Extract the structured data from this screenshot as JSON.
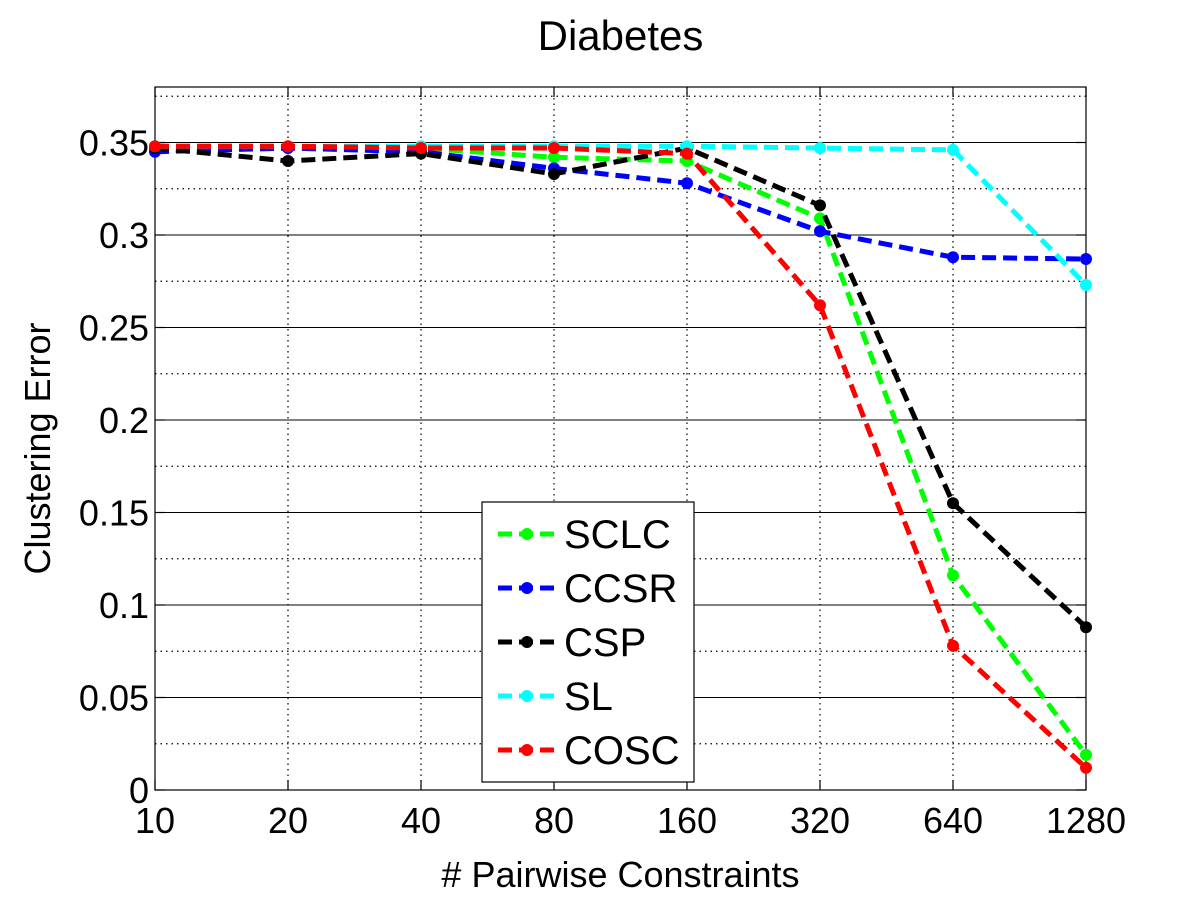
{
  "chart_data": {
    "type": "line",
    "title": "Diabetes",
    "xlabel": "# Pairwise Constraints",
    "ylabel": "Clustering Error",
    "categories": [
      "10",
      "20",
      "40",
      "80",
      "160",
      "320",
      "640",
      "1280"
    ],
    "ylim": [
      0,
      0.38
    ],
    "yticks": [
      0,
      0.05,
      0.1,
      0.15,
      0.2,
      0.25,
      0.3,
      0.35
    ],
    "ytick_labels": [
      "0",
      "0.05",
      "0.1",
      "0.15",
      "0.2",
      "0.25",
      "0.3",
      "0.35"
    ],
    "grid": true,
    "legend_position": "bottom-center",
    "series": [
      {
        "name": "SCLC",
        "color": "#00ff00",
        "values": [
          0.347,
          0.347,
          0.347,
          0.342,
          0.34,
          0.309,
          0.116,
          0.019
        ]
      },
      {
        "name": "CCSR",
        "color": "#0000ff",
        "values": [
          0.345,
          0.347,
          0.345,
          0.336,
          0.328,
          0.302,
          0.288,
          0.287
        ]
      },
      {
        "name": "CSP",
        "color": "#000000",
        "values": [
          0.347,
          0.34,
          0.344,
          0.333,
          0.347,
          0.316,
          0.155,
          0.088
        ]
      },
      {
        "name": "SL",
        "color": "#00ffff",
        "values": [
          0.348,
          0.348,
          0.348,
          0.348,
          0.348,
          0.347,
          0.346,
          0.273
        ]
      },
      {
        "name": "COSC",
        "color": "#ff0000",
        "values": [
          0.348,
          0.348,
          0.347,
          0.347,
          0.344,
          0.262,
          0.078,
          0.012
        ]
      }
    ]
  }
}
